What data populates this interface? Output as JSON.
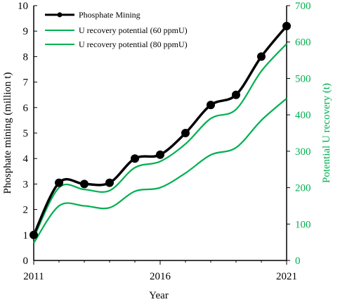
{
  "chart_data": {
    "type": "line",
    "x": [
      2011,
      2012,
      2013,
      2014,
      2015,
      2016,
      2017,
      2018,
      2019,
      2020,
      2021
    ],
    "xlabel": "Year",
    "x_ticks": [
      "2011",
      "2016",
      "2021"
    ],
    "xlim": [
      2011,
      2021
    ],
    "ylabel_left": "Phosphate mining (million t)",
    "ylim_left": [
      0,
      10
    ],
    "yticks_left": [
      "0",
      "1",
      "2",
      "3",
      "4",
      "5",
      "6",
      "7",
      "8",
      "9",
      "10"
    ],
    "ylabel_right": "Potential U recovery (t)",
    "ylim_right": [
      0,
      700
    ],
    "yticks_right": [
      "0",
      "100",
      "200",
      "300",
      "400",
      "500",
      "600",
      "700"
    ],
    "grid": false,
    "legend_position": "top-left",
    "series": [
      {
        "name": "Phosphate Mining",
        "axis": "left",
        "color": "#000000",
        "markers": true,
        "values": [
          1.0,
          3.05,
          3.0,
          3.05,
          4.0,
          4.15,
          5.0,
          6.1,
          6.5,
          8.0,
          9.2
        ]
      },
      {
        "name": "U recovery potential (60 ppmU)",
        "axis": "right",
        "color": "#00B050",
        "markers": false,
        "values": [
          48,
          150,
          150,
          145,
          190,
          200,
          240,
          290,
          310,
          385,
          445
        ]
      },
      {
        "name": "U recovery potential (80 ppmU)",
        "axis": "right",
        "color": "#00B050",
        "markers": false,
        "values": [
          62,
          200,
          195,
          192,
          255,
          272,
          320,
          390,
          415,
          520,
          595
        ]
      }
    ]
  }
}
